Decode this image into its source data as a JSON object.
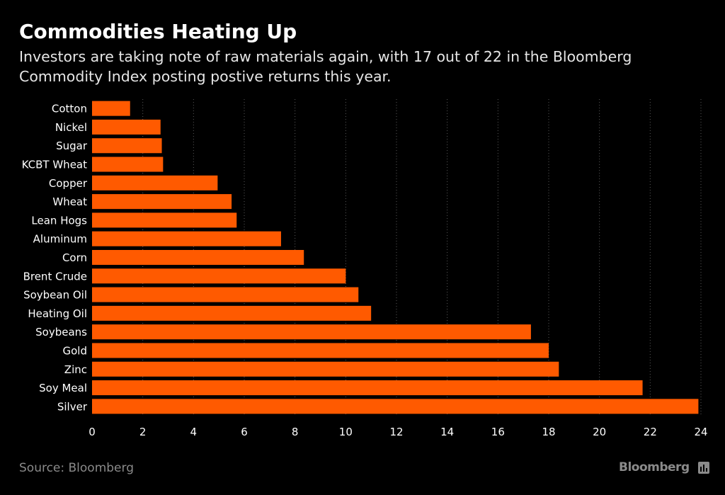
{
  "header": {
    "title": "Commodities Heating Up",
    "subtitle": "Investors are taking note of raw materials again, with 17 out of 22 in the Bloomberg Commodity Index posting postive returns this year."
  },
  "footer": {
    "source": "Source: Bloomberg",
    "brand": "Bloomberg",
    "brand_icon": "bloomberg-terminal-icon"
  },
  "colors": {
    "background": "#000000",
    "bar": "#ff5a00",
    "grid": "#5a5a5a",
    "text": "#ffffff",
    "muted": "#8a8a8a"
  },
  "chart_data": {
    "type": "bar",
    "orientation": "horizontal",
    "title": "Commodities Heating Up",
    "subtitle": "Investors are taking note of raw materials again, with 17 out of 22 in the Bloomberg Commodity Index posting postive returns this year.",
    "xlabel": "",
    "ylabel": "",
    "xlim": [
      0,
      24
    ],
    "xticks": [
      0,
      2,
      4,
      6,
      8,
      10,
      12,
      14,
      16,
      18,
      20,
      22,
      24
    ],
    "grid": "vertical dotted",
    "categories": [
      "Cotton",
      "Nickel",
      "Sugar",
      "KCBT Wheat",
      "Copper",
      "Wheat",
      "Lean Hogs",
      "Aluminum",
      "Corn",
      "Brent Crude",
      "Soybean Oil",
      "Heating Oil",
      "Soybeans",
      "Gold",
      "Zinc",
      "Soy Meal",
      "Silver"
    ],
    "values": [
      1.5,
      2.7,
      2.75,
      2.8,
      4.95,
      5.5,
      5.7,
      7.45,
      8.35,
      10.0,
      10.5,
      11.0,
      17.3,
      18.0,
      18.4,
      21.7,
      23.9
    ]
  }
}
